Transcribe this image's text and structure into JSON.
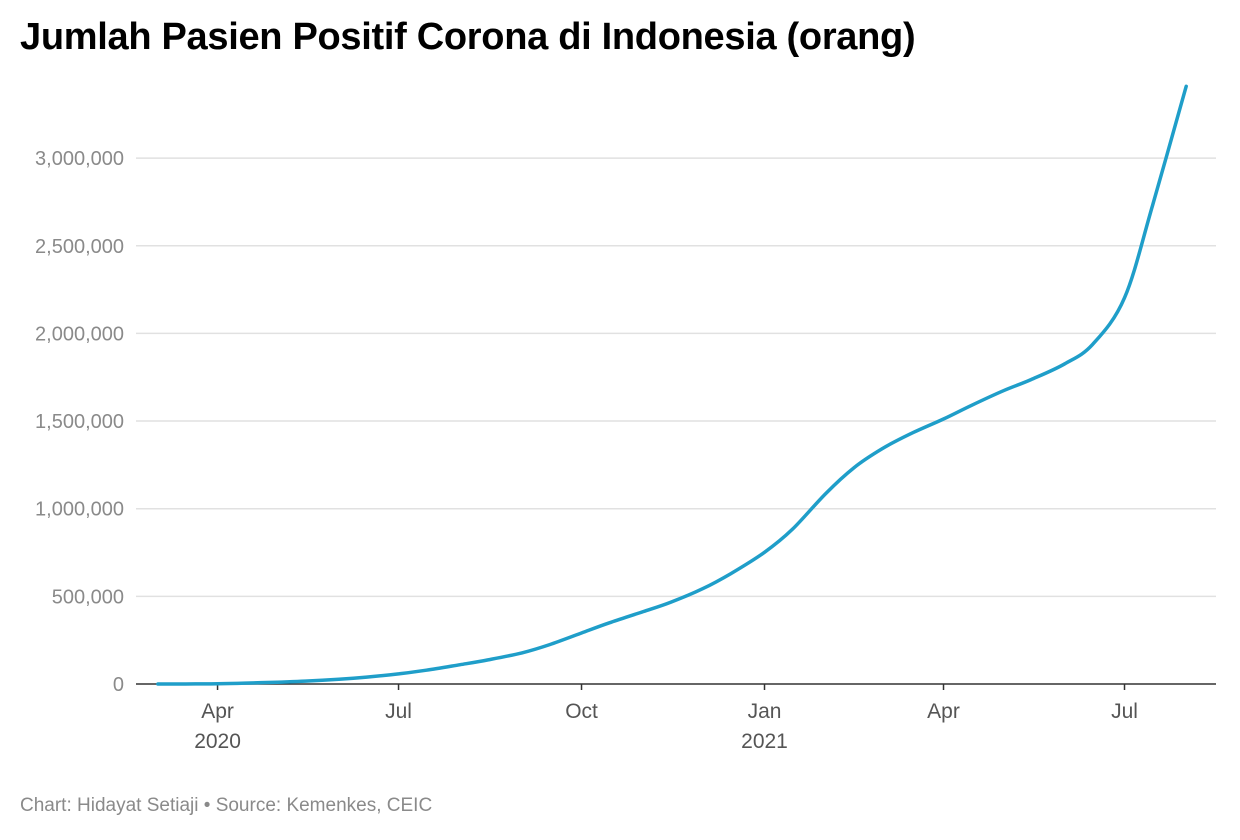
{
  "title": "Jumlah Pasien Positif Corona di Indonesia (orang)",
  "footer": {
    "chart_by": "Chart: Hidayat Setiaji",
    "separator": " • ",
    "source": "Source: Kemenkes, CEIC"
  },
  "colors": {
    "line": "#1f9ec9",
    "grid": "#e1e1e1",
    "axis": "#333333",
    "tick_text": "#8a8a8a"
  },
  "chart_data": {
    "type": "line",
    "title": "Jumlah Pasien Positif Corona di Indonesia (orang)",
    "xlabel": "",
    "ylabel": "",
    "ylim": [
      0,
      3400000
    ],
    "xlim": [
      "2020-02-20",
      "2021-08-16"
    ],
    "grid": true,
    "legend": "none",
    "yticks": [
      {
        "value": 0,
        "label": "0"
      },
      {
        "value": 500000,
        "label": "500,000"
      },
      {
        "value": 1000000,
        "label": "1,000,000"
      },
      {
        "value": 1500000,
        "label": "1,500,000"
      },
      {
        "value": 2000000,
        "label": "2,000,000"
      },
      {
        "value": 2500000,
        "label": "2,500,000"
      },
      {
        "value": 3000000,
        "label": "3,000,000"
      }
    ],
    "xticks": [
      {
        "date": "2020-04-01",
        "label": "Apr",
        "sublabel": "2020"
      },
      {
        "date": "2020-07-01",
        "label": "Jul",
        "sublabel": ""
      },
      {
        "date": "2020-10-01",
        "label": "Oct",
        "sublabel": ""
      },
      {
        "date": "2021-01-01",
        "label": "Jan",
        "sublabel": "2021"
      },
      {
        "date": "2021-04-01",
        "label": "Apr",
        "sublabel": ""
      },
      {
        "date": "2021-07-01",
        "label": "Jul",
        "sublabel": ""
      }
    ],
    "series": [
      {
        "points": [
          [
            "2020-03-02",
            2
          ],
          [
            "2020-03-15",
            117
          ],
          [
            "2020-04-01",
            1677
          ],
          [
            "2020-04-15",
            5136
          ],
          [
            "2020-05-01",
            10551
          ],
          [
            "2020-05-15",
            16496
          ],
          [
            "2020-06-01",
            26940
          ],
          [
            "2020-06-15",
            39294
          ],
          [
            "2020-07-01",
            57770
          ],
          [
            "2020-07-15",
            78572
          ],
          [
            "2020-08-01",
            109936
          ],
          [
            "2020-08-15",
            137468
          ],
          [
            "2020-09-01",
            177571
          ],
          [
            "2020-09-15",
            225030
          ],
          [
            "2020-10-01",
            291182
          ],
          [
            "2020-10-15",
            349160
          ],
          [
            "2020-11-01",
            412784
          ],
          [
            "2020-11-15",
            467113
          ],
          [
            "2020-12-01",
            543975
          ],
          [
            "2020-12-15",
            629429
          ],
          [
            "2021-01-01",
            751270
          ],
          [
            "2021-01-15",
            882418
          ],
          [
            "2021-02-01",
            1089308
          ],
          [
            "2021-02-15",
            1233959
          ],
          [
            "2021-03-01",
            1341314
          ],
          [
            "2021-03-15",
            1425044
          ],
          [
            "2021-04-01",
            1511712
          ],
          [
            "2021-04-15",
            1589359
          ],
          [
            "2021-05-01",
            1672880
          ],
          [
            "2021-05-15",
            1736670
          ],
          [
            "2021-06-01",
            1826527
          ],
          [
            "2021-06-15",
            1937652
          ],
          [
            "2021-07-01",
            2203108
          ],
          [
            "2021-07-15",
            2726803
          ],
          [
            "2021-08-01",
            3409658
          ]
        ]
      }
    ]
  }
}
